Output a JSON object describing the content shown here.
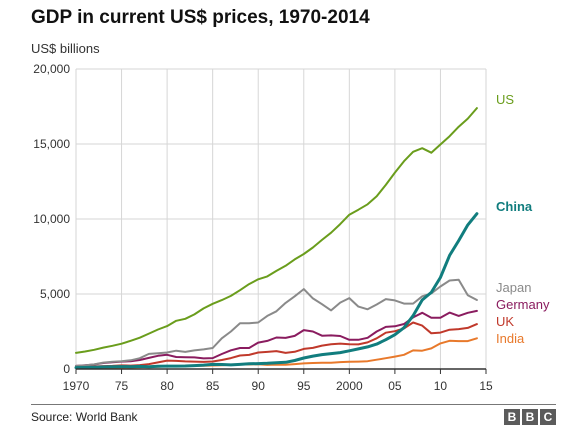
{
  "header": {
    "title": "GDP in current US$ prices, 1970-2014",
    "unit_label": "US$ billions"
  },
  "footer": {
    "source": "Source: World Bank",
    "logo_letters": [
      "B",
      "B",
      "C"
    ]
  },
  "chart_data": {
    "type": "line",
    "title": "GDP in current US$ prices, 1970-2014",
    "ylabel": "US$ billions",
    "xlabel": "",
    "xlim": [
      1970,
      2015
    ],
    "ylim": [
      0,
      20000
    ],
    "grid": true,
    "x_ticks": [
      1970,
      1975,
      1980,
      1985,
      1990,
      1995,
      2000,
      2005,
      2010,
      2015
    ],
    "x_tick_labels": [
      "1970",
      "75",
      "80",
      "85",
      "90",
      "95",
      "2000",
      "05",
      "10",
      "15"
    ],
    "y_ticks": [
      0,
      5000,
      10000,
      15000,
      20000
    ],
    "y_tick_labels": [
      "0",
      "5,000",
      "10,000",
      "15,000",
      "20,000"
    ],
    "legend": "inline-right",
    "x": [
      1970,
      1971,
      1972,
      1973,
      1974,
      1975,
      1976,
      1977,
      1978,
      1979,
      1980,
      1981,
      1982,
      1983,
      1984,
      1985,
      1986,
      1987,
      1988,
      1989,
      1990,
      1991,
      1992,
      1993,
      1994,
      1995,
      1996,
      1997,
      1998,
      1999,
      2000,
      2001,
      2002,
      2003,
      2004,
      2005,
      2006,
      2007,
      2008,
      2009,
      2010,
      2011,
      2012,
      2013,
      2014
    ],
    "series": [
      {
        "name": "US",
        "color": "#6a9d1c",
        "bold": false,
        "values": [
          1075,
          1168,
          1282,
          1429,
          1549,
          1689,
          1878,
          2086,
          2357,
          2632,
          2863,
          3211,
          3345,
          3638,
          4041,
          4347,
          4590,
          4870,
          5253,
          5658,
          5980,
          6174,
          6539,
          6879,
          7309,
          7664,
          8100,
          8609,
          9089,
          9661,
          10285,
          10622,
          10978,
          11511,
          12275,
          13094,
          13856,
          14478,
          14719,
          14419,
          14964,
          15518,
          16155,
          16692,
          17393
        ]
      },
      {
        "name": "China",
        "color": "#117d7e",
        "bold": true,
        "values": [
          92,
          99,
          113,
          138,
          144,
          163,
          153,
          174,
          149,
          178,
          191,
          196,
          203,
          229,
          258,
          307,
          298,
          270,
          310,
          345,
          357,
          379,
          423,
          444,
          564,
          734,
          863,
          962,
          1029,
          1094,
          1211,
          1339,
          1471,
          1660,
          1955,
          2286,
          2752,
          3552,
          4598,
          5110,
          6101,
          7573,
          8561,
          9607,
          10355
        ]
      },
      {
        "name": "Japan",
        "color": "#8a8a8a",
        "bold": false,
        "values": [
          210,
          240,
          310,
          430,
          480,
          520,
          580,
          720,
          1010,
          1050,
          1100,
          1220,
          1140,
          1240,
          1310,
          1400,
          2050,
          2500,
          3050,
          3050,
          3100,
          3540,
          3850,
          4410,
          4850,
          5330,
          4710,
          4320,
          3910,
          4430,
          4730,
          4160,
          3980,
          4300,
          4660,
          4570,
          4360,
          4360,
          4850,
          5040,
          5500,
          5900,
          5950,
          4920,
          4600
        ]
      },
      {
        "name": "Germany",
        "color": "#8a1c5f",
        "bold": false,
        "values": [
          210,
          250,
          300,
          400,
          450,
          490,
          520,
          600,
          740,
          880,
          950,
          800,
          780,
          770,
          710,
          730,
          1000,
          1250,
          1400,
          1400,
          1760,
          1870,
          2100,
          2070,
          2210,
          2590,
          2500,
          2220,
          2240,
          2200,
          1950,
          1950,
          2080,
          2500,
          2810,
          2850,
          3000,
          3440,
          3750,
          3420,
          3420,
          3760,
          3540,
          3750,
          3870
        ]
      },
      {
        "name": "UK",
        "color": "#c0392b",
        "bold": false,
        "values": [
          130,
          150,
          170,
          190,
          210,
          240,
          230,
          260,
          330,
          440,
          560,
          540,
          510,
          490,
          470,
          500,
          600,
          730,
          900,
          940,
          1100,
          1140,
          1190,
          1070,
          1150,
          1340,
          1410,
          1560,
          1650,
          1690,
          1650,
          1640,
          1770,
          2050,
          2420,
          2520,
          2710,
          3100,
          2890,
          2380,
          2430,
          2620,
          2660,
          2740,
          2990
        ]
      },
      {
        "name": "India",
        "color": "#e8792b",
        "bold": false,
        "values": [
          60,
          65,
          70,
          85,
          100,
          100,
          105,
          120,
          140,
          155,
          190,
          195,
          205,
          220,
          215,
          235,
          250,
          280,
          300,
          300,
          320,
          270,
          290,
          280,
          330,
          370,
          400,
          420,
          420,
          460,
          480,
          490,
          520,
          620,
          720,
          830,
          950,
          1240,
          1220,
          1370,
          1710,
          1880,
          1860,
          1860,
          2050
        ]
      }
    ]
  }
}
